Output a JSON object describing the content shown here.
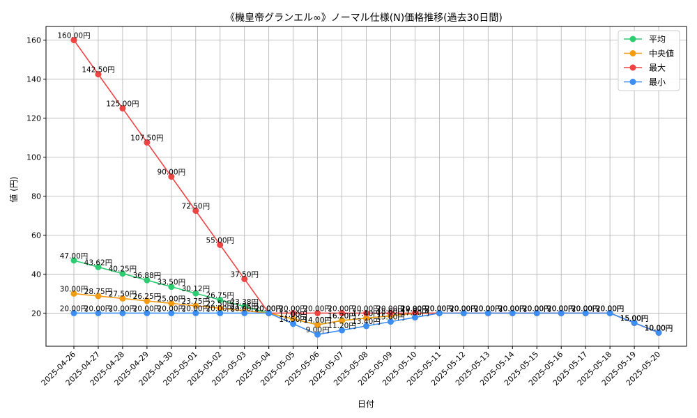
{
  "chart_data": {
    "type": "line",
    "title": "《機皇帝グランエル∞》ノーマル仕様(N)価格推移(過去30日間)",
    "xlabel": "日付",
    "ylabel": "値 (円)",
    "ylim": [
      3,
      167
    ],
    "yticks": [
      20,
      40,
      60,
      80,
      100,
      120,
      140,
      160
    ],
    "grid": true,
    "legend_position": "top-right",
    "categories": [
      "2025-04-26",
      "2025-04-27",
      "2025-04-28",
      "2025-04-29",
      "2025-04-30",
      "2025-05-01",
      "2025-05-02",
      "2025-05-03",
      "2025-05-04",
      "2025-05-05",
      "2025-05-06",
      "2025-05-07",
      "2025-05-08",
      "2025-05-09",
      "2025-05-10",
      "2025-05-11",
      "2025-05-12",
      "2025-05-13",
      "2025-05-14",
      "2025-05-15",
      "2025-05-16",
      "2025-05-17",
      "2025-05-18",
      "2025-05-19",
      "2025-05-20"
    ],
    "label_suffix": "円",
    "series": [
      {
        "name": "平均",
        "color": "#2ecc71",
        "values": [
          47.0,
          43.62,
          40.25,
          36.88,
          33.5,
          30.12,
          26.75,
          23.38,
          20.0,
          17.0,
          14.0,
          16.2,
          17.4,
          18.6,
          19.8,
          20.0,
          20.0,
          20.0,
          20.0,
          20.0,
          20.0,
          20.0,
          20.0,
          15.0,
          10.0
        ]
      },
      {
        "name": "中央値",
        "color": "#f39c12",
        "values": [
          30.0,
          28.75,
          27.5,
          26.25,
          25.0,
          23.75,
          22.5,
          21.25,
          20.0,
          17.0,
          14.0,
          16.2,
          17.4,
          18.6,
          19.8,
          20.0,
          20.0,
          20.0,
          20.0,
          20.0,
          20.0,
          20.0,
          20.0,
          15.0,
          10.0
        ]
      },
      {
        "name": "最大",
        "color": "#ef4444",
        "values": [
          160.0,
          142.5,
          125.0,
          107.5,
          90.0,
          72.5,
          55.0,
          37.5,
          20.0,
          20.0,
          20.0,
          20.0,
          20.0,
          20.0,
          20.0,
          20.0,
          20.0,
          20.0,
          20.0,
          20.0,
          20.0,
          20.0,
          20.0,
          15.0,
          10.0
        ]
      },
      {
        "name": "最小",
        "color": "#3b8ef3",
        "values": [
          20.0,
          20.0,
          20.0,
          20.0,
          20.0,
          20.0,
          20.0,
          20.0,
          20.0,
          14.5,
          9.0,
          11.2,
          13.4,
          15.6,
          17.8,
          20.0,
          20.0,
          20.0,
          20.0,
          20.0,
          20.0,
          20.0,
          20.0,
          15.0,
          10.0
        ]
      }
    ]
  }
}
